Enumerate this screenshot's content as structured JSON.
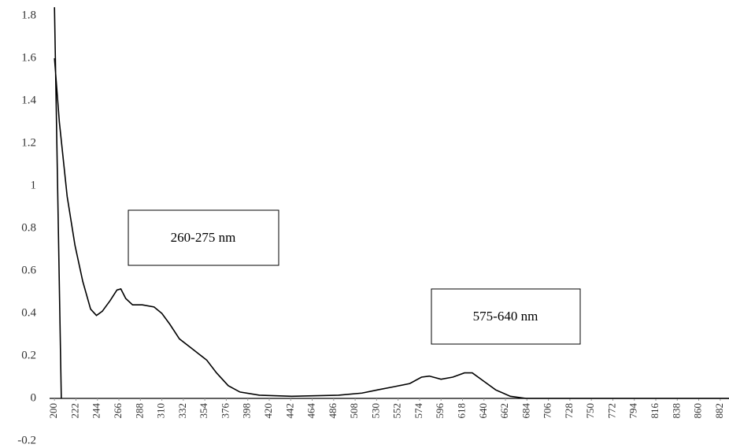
{
  "chart_data": {
    "type": "line",
    "x": [
      200,
      207,
      null,
      200,
      205,
      213,
      221,
      229,
      237,
      243,
      249,
      257,
      264,
      268,
      273,
      280,
      290,
      302,
      310,
      318,
      328,
      342,
      356,
      366,
      378,
      390,
      410,
      443,
      491,
      515,
      531,
      548,
      564,
      576,
      584,
      596,
      608,
      620,
      628,
      640,
      652,
      667,
      683,
      891
    ],
    "series": [
      {
        "color": "#000000",
        "values": [
          1.84,
          0,
          null,
          1.6,
          1.3,
          0.95,
          0.72,
          0.55,
          0.42,
          0.39,
          0.41,
          0.46,
          0.51,
          0.515,
          0.47,
          0.44,
          0.44,
          0.43,
          0.4,
          0.35,
          0.28,
          0.23,
          0.18,
          0.12,
          0.06,
          0.03,
          0.015,
          0.01,
          0.015,
          0.025,
          0.04,
          0.055,
          0.07,
          0.1,
          0.105,
          0.09,
          0.1,
          0.12,
          0.12,
          0.08,
          0.04,
          0.01,
          0,
          0
        ]
      }
    ],
    "xlim": [
      195,
      891
    ],
    "xticks": [
      200,
      222,
      244,
      266,
      288,
      310,
      332,
      354,
      376,
      398,
      420,
      442,
      464,
      486,
      508,
      530,
      552,
      574,
      596,
      618,
      640,
      662,
      684,
      706,
      728,
      750,
      772,
      794,
      816,
      838,
      860,
      882
    ],
    "ylim": [
      -0.2,
      1.8
    ],
    "yticks": [
      -0.2,
      0,
      0.2,
      0.4,
      0.6,
      0.8,
      1,
      1.2,
      1.4,
      1.6,
      1.8
    ],
    "annotations": [
      "260-275 nm",
      "575-640 nm"
    ]
  }
}
